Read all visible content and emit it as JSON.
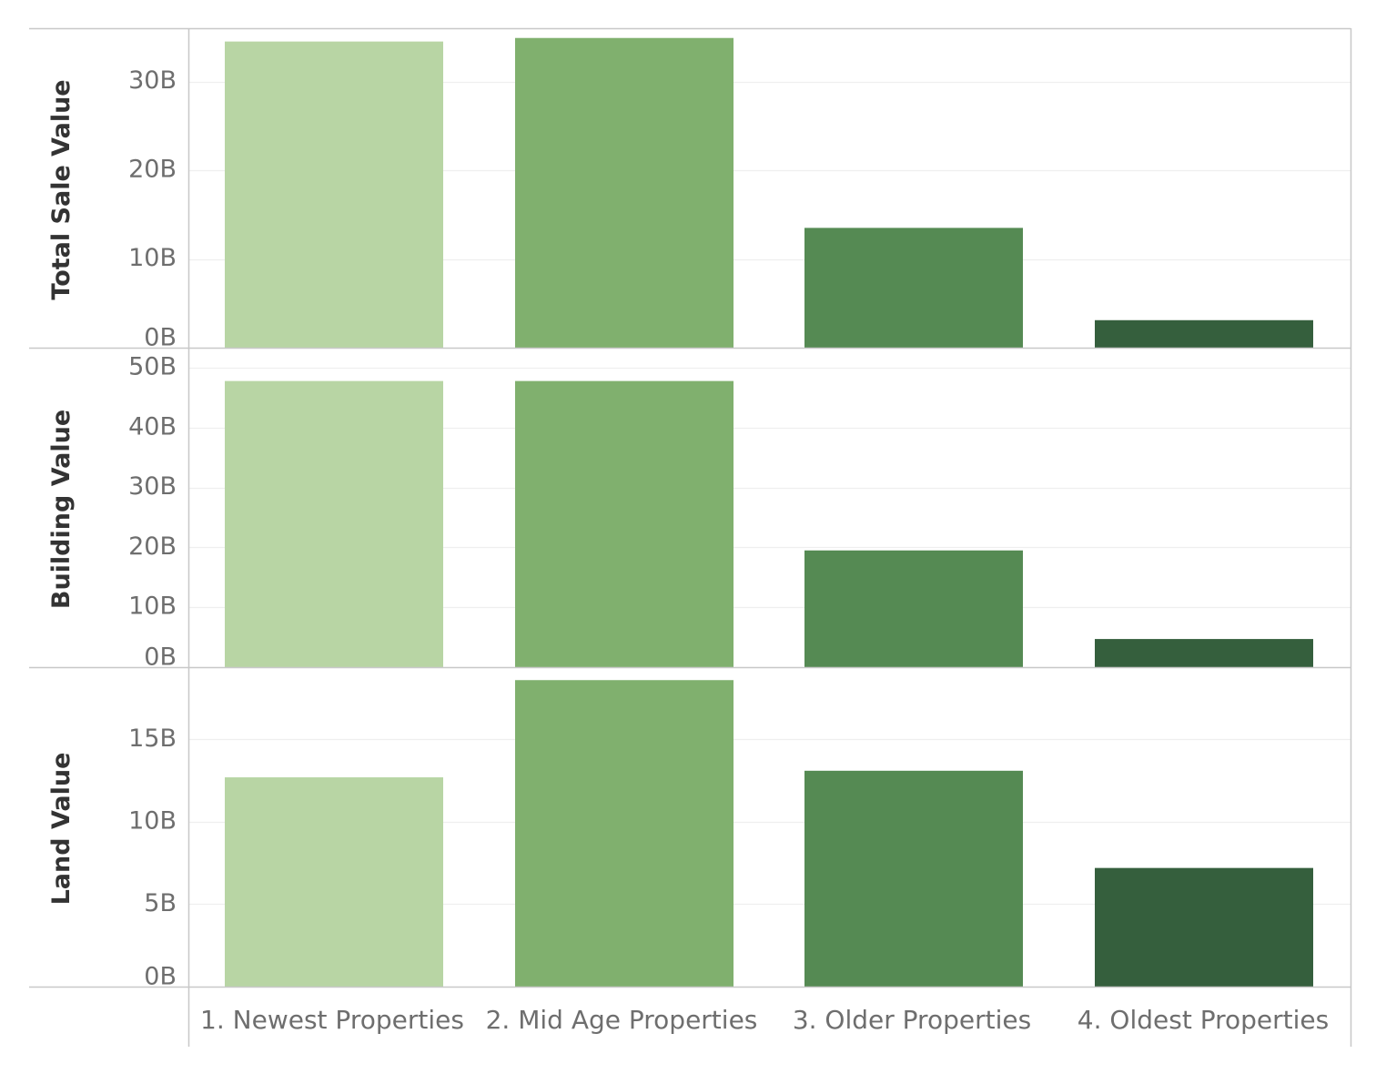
{
  "chart_data": {
    "type": "bar",
    "categories": [
      "1. Newest Properties",
      "2. Mid Age Properties",
      "3. Older Properties",
      "4. Oldest Properties"
    ],
    "bar_colors": [
      "#b8d5a4",
      "#80b06e",
      "#558a53",
      "#355f3d"
    ],
    "gridlines": true,
    "panels": [
      {
        "name": "Total Sale Value",
        "ylabel": "Total Sale Value",
        "ylim": [
          0,
          36
        ],
        "ticks": [
          {
            "value": 0,
            "label": "0B"
          },
          {
            "value": 10,
            "label": "10B"
          },
          {
            "value": 20,
            "label": "20B"
          },
          {
            "value": 30,
            "label": "30B"
          }
        ],
        "values": [
          34.5,
          34.9,
          13.5,
          3.1
        ]
      },
      {
        "name": "Building Value",
        "ylabel": "Building Value",
        "ylim": [
          0,
          52
        ],
        "ticks": [
          {
            "value": 0,
            "label": "0B"
          },
          {
            "value": 10,
            "label": "10B"
          },
          {
            "value": 20,
            "label": "20B"
          },
          {
            "value": 30,
            "label": "30B"
          },
          {
            "value": 40,
            "label": "40B"
          },
          {
            "value": 50,
            "label": "50B"
          }
        ],
        "values": [
          47.8,
          47.8,
          19.5,
          4.7
        ]
      },
      {
        "name": "Land Value",
        "ylabel": "Land Value",
        "ylim": [
          0,
          19
        ],
        "ticks": [
          {
            "value": 0,
            "label": "0B"
          },
          {
            "value": 5,
            "label": "5B"
          },
          {
            "value": 10,
            "label": "10B"
          },
          {
            "value": 15,
            "label": "15B"
          }
        ],
        "values": [
          12.7,
          18.6,
          13.1,
          7.2
        ]
      }
    ]
  }
}
